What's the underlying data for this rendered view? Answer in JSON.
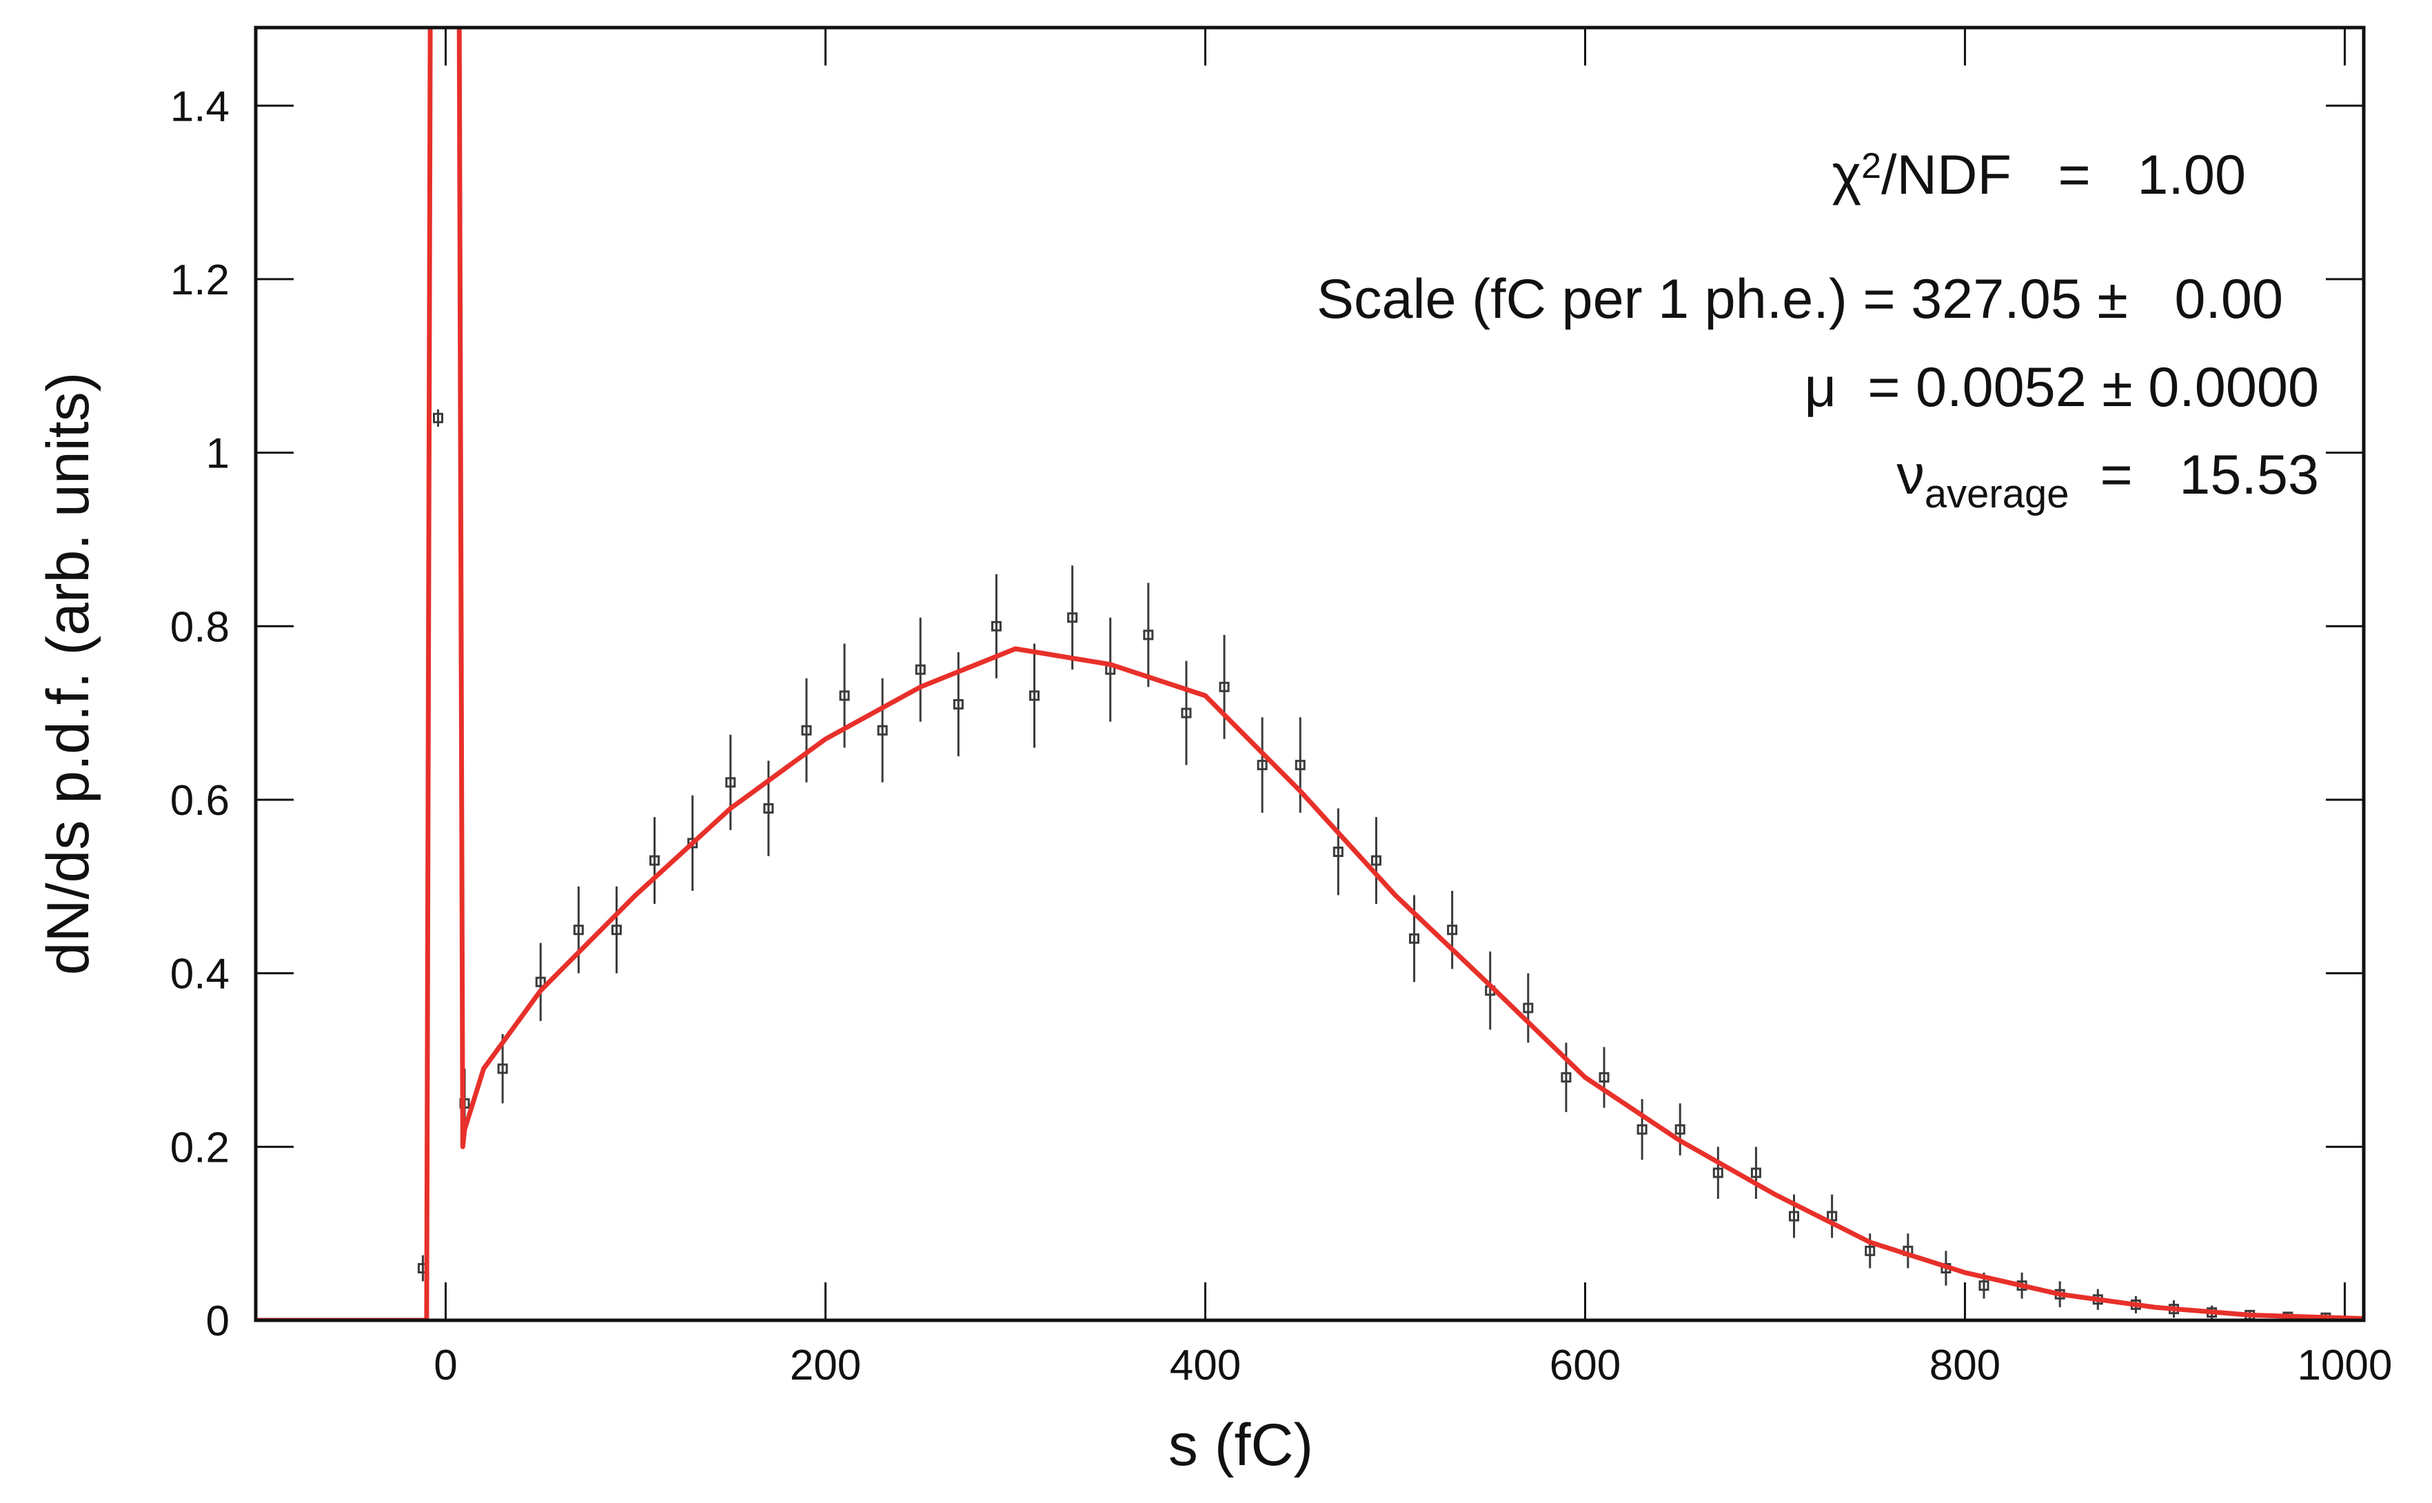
{
  "chart_data": {
    "type": "scatter",
    "xlabel": "s (fC)",
    "ylabel": "dN/ds p.d.f. (arb. units)",
    "xlim": [
      -100,
      1010
    ],
    "ylim": [
      0,
      1.49
    ],
    "xticks": [
      0,
      200,
      400,
      600,
      800,
      1000
    ],
    "yticks": [
      0,
      0.2,
      0.4,
      0.6,
      0.8,
      1,
      1.2,
      1.4
    ],
    "series": [
      {
        "kind": "points",
        "color": "#3a3a3a",
        "x": [
          -12,
          -4,
          10,
          30,
          50,
          70,
          90,
          110,
          130,
          150,
          170,
          190,
          210,
          230,
          250,
          270,
          290,
          310,
          330,
          350,
          370,
          390,
          410,
          430,
          450,
          470,
          490,
          510,
          530,
          550,
          570,
          590,
          610,
          630,
          650,
          670,
          690,
          710,
          730,
          750,
          770,
          790,
          810,
          830,
          850,
          870,
          890,
          910,
          930,
          950,
          970,
          990
        ],
        "values": [
          0.06,
          1.04,
          0.25,
          0.29,
          0.39,
          0.45,
          0.45,
          0.53,
          0.55,
          0.62,
          0.59,
          0.68,
          0.72,
          0.68,
          0.75,
          0.71,
          0.8,
          0.72,
          0.81,
          0.75,
          0.79,
          0.7,
          0.73,
          0.64,
          0.64,
          0.54,
          0.53,
          0.44,
          0.45,
          0.38,
          0.36,
          0.28,
          0.28,
          0.22,
          0.22,
          0.17,
          0.17,
          0.12,
          0.12,
          0.08,
          0.08,
          0.06,
          0.04,
          0.04,
          0.03,
          0.024,
          0.018,
          0.013,
          0.009,
          0.006,
          0.004,
          0.003
        ],
        "errors": [
          0.015,
          0.01,
          0.04,
          0.04,
          0.045,
          0.05,
          0.05,
          0.05,
          0.055,
          0.055,
          0.055,
          0.06,
          0.06,
          0.06,
          0.06,
          0.06,
          0.06,
          0.06,
          0.06,
          0.06,
          0.06,
          0.06,
          0.06,
          0.055,
          0.055,
          0.05,
          0.05,
          0.05,
          0.045,
          0.045,
          0.04,
          0.04,
          0.035,
          0.035,
          0.03,
          0.03,
          0.03,
          0.025,
          0.025,
          0.02,
          0.02,
          0.02,
          0.015,
          0.015,
          0.015,
          0.012,
          0.01,
          0.01,
          0.008,
          0.006,
          0.005,
          0.004
        ]
      },
      {
        "kind": "line",
        "color": "#e8302a",
        "x": [
          -100,
          -10,
          -8,
          7,
          9,
          10,
          20,
          50,
          100,
          150,
          200,
          250,
          300,
          350,
          400,
          450,
          500,
          550,
          600,
          650,
          700,
          750,
          800,
          850,
          900,
          950,
          1010
        ],
        "values": [
          0,
          0,
          1.6,
          1.6,
          0.2,
          0.22,
          0.29,
          0.38,
          0.49,
          0.59,
          0.67,
          0.73,
          0.774,
          0.756,
          0.72,
          0.61,
          0.49,
          0.386,
          0.28,
          0.207,
          0.145,
          0.09,
          0.055,
          0.03,
          0.015,
          0.006,
          0.002
        ]
      }
    ],
    "annotations": [
      [
        {
          "text": "χ"
        },
        {
          "text": "2",
          "pos": "sup"
        },
        {
          "text": "/NDF   =   1.00"
        }
      ],
      [
        {
          "text": "Scale (fC per 1 ph.e.) = 327.05 ±   0.00"
        }
      ],
      [
        {
          "text": "μ  = 0.0052 ± 0.0000"
        }
      ],
      [
        {
          "text": "ν"
        },
        {
          "text": "average",
          "pos": "sub"
        },
        {
          "text": "  =   15.53"
        }
      ]
    ]
  }
}
